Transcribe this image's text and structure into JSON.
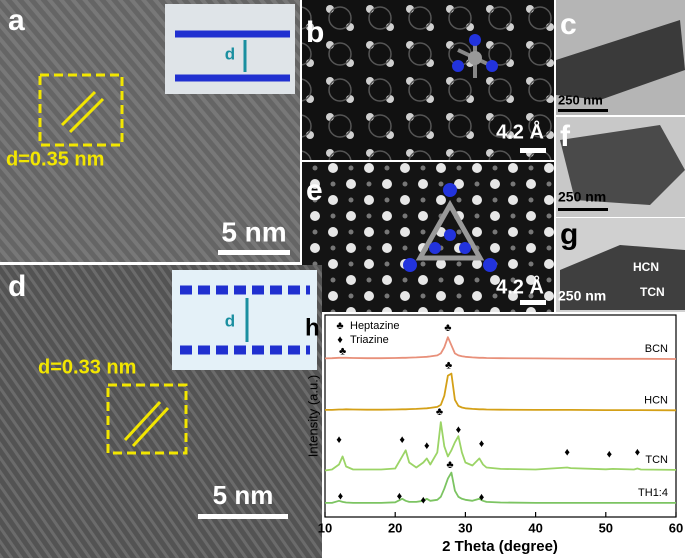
{
  "panels": {
    "a": {
      "label": "a",
      "annotation": "d=0.35 nm",
      "scale_bar": "5 nm",
      "inset_label": "d"
    },
    "b": {
      "label": "b",
      "scale_bar": "4.2 Å"
    },
    "c": {
      "label": "c",
      "scale_bar": "250 nm"
    },
    "d": {
      "label": "d",
      "annotation": "d=0.33 nm",
      "scale_bar": "5 nm",
      "inset_label": "d"
    },
    "e": {
      "label": "e",
      "scale_bar": "4.2 Å"
    },
    "f": {
      "label": "f",
      "scale_bar": "250 nm"
    },
    "g": {
      "label": "g",
      "scale_bar": "250 nm",
      "region_labels": [
        "HCN",
        "TCN"
      ]
    }
  },
  "chart_data": {
    "type": "line",
    "panel_label": "h",
    "x_label": "2 Theta (degree)",
    "y_label": "Intensity (a.u.)",
    "xlim": [
      10,
      60
    ],
    "xticks": [
      10,
      20,
      30,
      40,
      50,
      60
    ],
    "ylim": [
      0,
      100
    ],
    "x": [
      10,
      11,
      12,
      12.5,
      13,
      14,
      16,
      18,
      20,
      21,
      21.5,
      22,
      23,
      24,
      24.5,
      25,
      26,
      26.5,
      27,
      27.5,
      28,
      28.5,
      29,
      29.5,
      30,
      31,
      32,
      32.5,
      33,
      35,
      40,
      44.5,
      45,
      50,
      51,
      54,
      54.5,
      55,
      60
    ],
    "series": [
      {
        "name": "BCN",
        "color": "#e8907a",
        "values": [
          78.5,
          78.6,
          78.8,
          78.8,
          78.8,
          78.7,
          78.6,
          78.6,
          78.7,
          78.8,
          78.8,
          78.9,
          79,
          79.2,
          79.3,
          79.5,
          80,
          81,
          84,
          89,
          85,
          81,
          80,
          79.6,
          79.3,
          79,
          78.8,
          78.8,
          78.7,
          78.6,
          78.5,
          78.4,
          78.4,
          78.3,
          78.3,
          78.3,
          78.3,
          78.3,
          78.2
        ]
      },
      {
        "name": "HCN",
        "color": "#d4a017",
        "values": [
          53,
          53,
          53.2,
          53.2,
          53.3,
          53.2,
          53.1,
          53.1,
          53.2,
          53.3,
          53.3,
          53.4,
          53.5,
          53.7,
          53.8,
          54,
          54.5,
          55.5,
          60,
          70,
          71,
          58,
          55,
          54.2,
          53.8,
          53.5,
          53.3,
          53.3,
          53.2,
          53.1,
          53,
          53,
          53,
          52.9,
          52.9,
          52.9,
          52.9,
          52.9,
          52.8
        ]
      },
      {
        "name": "TCN",
        "color": "#9bd466",
        "values": [
          23,
          23.5,
          26,
          30,
          25,
          23.5,
          23.5,
          23.5,
          24,
          30,
          33,
          27,
          24.5,
          27,
          29,
          26,
          32,
          47,
          35,
          30,
          33,
          37,
          40,
          32,
          27,
          25.5,
          29,
          26,
          24.5,
          23.8,
          23.5,
          24.5,
          24.2,
          23.6,
          23.8,
          23.5,
          24,
          23.5,
          23.3
        ]
      },
      {
        "name": "TH1:4",
        "color": "#7cc462",
        "values": [
          7,
          7,
          8,
          7.5,
          7.2,
          7,
          7,
          7,
          7.3,
          9,
          8,
          7.5,
          7.5,
          8,
          9,
          8,
          8.5,
          10,
          14,
          19,
          22,
          13,
          10,
          9,
          8.5,
          8,
          9,
          8,
          7.5,
          7.2,
          7,
          7,
          7,
          7,
          7,
          7,
          7,
          7,
          7
        ]
      }
    ],
    "markers": [
      {
        "name": "Heptazine",
        "symbol": "♣",
        "points": [
          {
            "x": 12.5,
            "y": 82
          },
          {
            "x": 27.5,
            "y": 93.5
          },
          {
            "x": 27.6,
            "y": 75
          },
          {
            "x": 26.3,
            "y": 52
          },
          {
            "x": 27.8,
            "y": 25.7
          }
        ]
      },
      {
        "name": "Triazine",
        "symbol": "♦",
        "points": [
          {
            "x": 12,
            "y": 38
          },
          {
            "x": 21,
            "y": 38
          },
          {
            "x": 24.5,
            "y": 35
          },
          {
            "x": 29,
            "y": 43
          },
          {
            "x": 32.3,
            "y": 36
          },
          {
            "x": 44.5,
            "y": 32
          },
          {
            "x": 50.5,
            "y": 31
          },
          {
            "x": 54.5,
            "y": 32
          },
          {
            "x": 12.2,
            "y": 10
          },
          {
            "x": 20.6,
            "y": 10
          },
          {
            "x": 24,
            "y": 8
          },
          {
            "x": 32.3,
            "y": 9.5
          }
        ]
      }
    ]
  }
}
